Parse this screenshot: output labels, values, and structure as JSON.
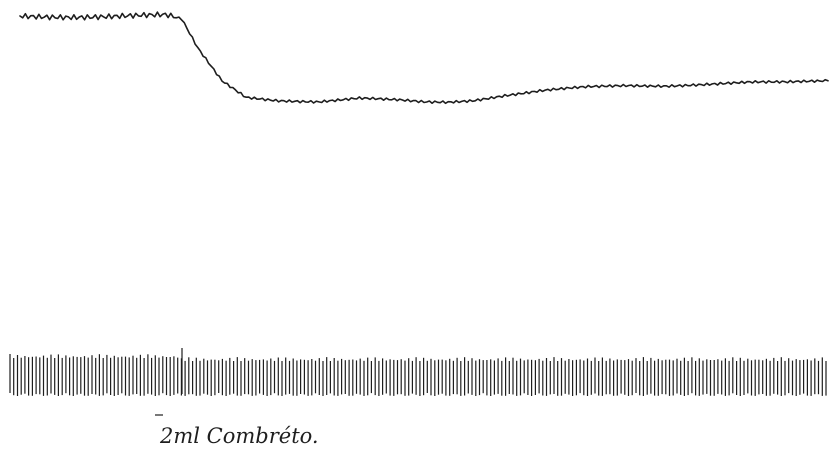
{
  "chart_data": {
    "type": "line",
    "title": "",
    "xlabel": "",
    "ylabel": "",
    "grid": false,
    "legend": "none",
    "series": [
      {
        "x": [
          0,
          5,
          10,
          15,
          18,
          20,
          22,
          25,
          28,
          32,
          37,
          42,
          47,
          50,
          53,
          56,
          60,
          65,
          70,
          75,
          80,
          85,
          90,
          95,
          100
        ],
        "y": [
          100,
          100,
          100,
          100,
          100,
          98,
          80,
          60,
          50,
          48,
          47,
          49,
          48,
          47,
          47,
          48,
          51,
          54,
          56,
          57,
          57,
          58,
          59,
          59,
          60
        ]
      }
    ],
    "ticks": {
      "count": 220
    },
    "annotation": {
      "text": "2ml Combréto."
    },
    "colors": {
      "ink": "#1e1e1e",
      "background": "#ffffff"
    }
  }
}
